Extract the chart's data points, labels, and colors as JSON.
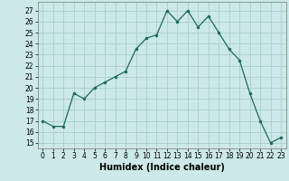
{
  "x": [
    0,
    1,
    2,
    3,
    4,
    5,
    6,
    7,
    8,
    9,
    10,
    11,
    12,
    13,
    14,
    15,
    16,
    17,
    18,
    19,
    20,
    21,
    22,
    23
  ],
  "y": [
    17,
    16.5,
    16.5,
    19.5,
    19,
    20,
    20.5,
    21,
    21.5,
    23.5,
    24.5,
    24.8,
    27,
    26,
    27,
    25.5,
    26.5,
    25,
    23.5,
    22.5,
    19.5,
    17,
    15,
    15.5
  ],
  "line_color": "#1a6b5a",
  "marker_color": "#1a6b5a",
  "bg_color": "#cce8e8",
  "grid_color": "#aacece",
  "xlabel": "Humidex (Indice chaleur)",
  "xlabel_fontsize": 7,
  "ylabel_ticks": [
    15,
    16,
    17,
    18,
    19,
    20,
    21,
    22,
    23,
    24,
    25,
    26,
    27
  ],
  "ylim": [
    14.5,
    27.8
  ],
  "xlim": [
    -0.5,
    23.5
  ],
  "xticks": [
    0,
    1,
    2,
    3,
    4,
    5,
    6,
    7,
    8,
    9,
    10,
    11,
    12,
    13,
    14,
    15,
    16,
    17,
    18,
    19,
    20,
    21,
    22,
    23
  ],
  "tick_fontsize": 5.5
}
